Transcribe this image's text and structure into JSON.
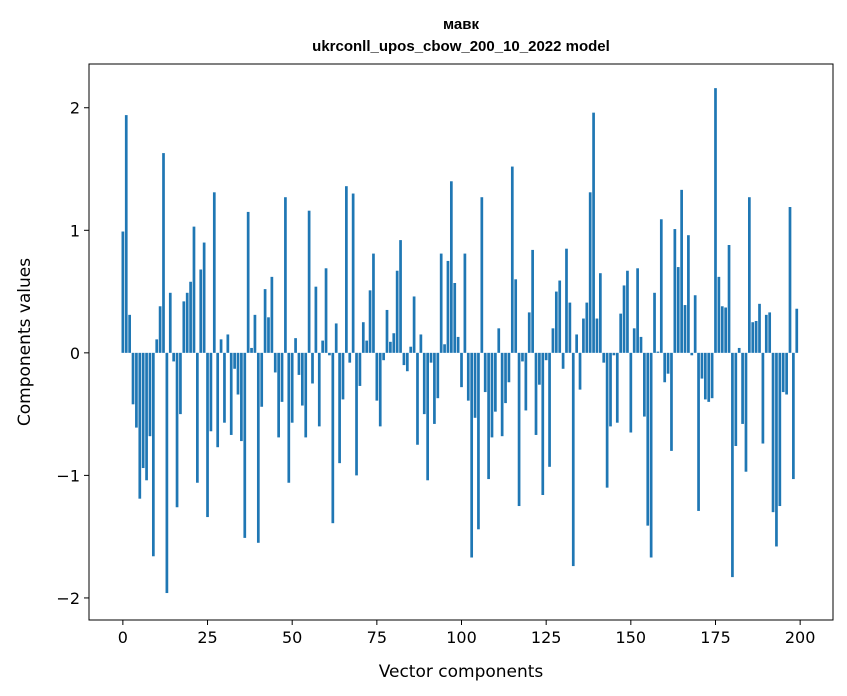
{
  "chart_data": {
    "type": "bar",
    "title_line1": "мавк",
    "title_line2": "ukrconll_upos_cbow_200_10_2022 model",
    "xlabel": "Vector components",
    "ylabel": "Components values",
    "xlim": [
      -10,
      209.7
    ],
    "ylim": [
      -2.18,
      2.357
    ],
    "xticks": [
      0,
      25,
      50,
      75,
      100,
      125,
      150,
      175,
      200
    ],
    "xtick_labels": [
      "0",
      "25",
      "50",
      "75",
      "100",
      "125",
      "150",
      "175",
      "200"
    ],
    "yticks": [
      -2,
      -1,
      0,
      1,
      2
    ],
    "ytick_labels": [
      "−2",
      "−1",
      "0",
      "1",
      "2"
    ],
    "grid": false,
    "bar_color": "#1f77b4",
    "values": [
      0.99,
      1.94,
      0.31,
      -0.42,
      -0.61,
      -1.19,
      -0.94,
      -1.04,
      -0.68,
      -1.66,
      0.11,
      0.38,
      1.63,
      -1.96,
      0.49,
      -0.07,
      -1.26,
      -0.5,
      0.42,
      0.49,
      0.58,
      1.03,
      -1.06,
      0.68,
      0.9,
      -1.34,
      -0.64,
      1.31,
      -0.77,
      0.11,
      -0.57,
      0.15,
      -0.67,
      -0.13,
      -0.34,
      -0.72,
      -1.51,
      1.15,
      0.04,
      0.31,
      -1.55,
      -0.44,
      0.52,
      0.29,
      0.62,
      -0.16,
      -0.69,
      -0.4,
      1.27,
      -1.06,
      -0.57,
      0.12,
      -0.18,
      -0.43,
      -0.69,
      1.16,
      -0.25,
      0.54,
      -0.6,
      0.1,
      0.69,
      -0.02,
      -1.39,
      0.24,
      -0.9,
      -0.38,
      1.36,
      -0.08,
      1.3,
      -1.0,
      -0.27,
      0.25,
      0.1,
      0.51,
      0.81,
      -0.39,
      -0.6,
      -0.06,
      0.35,
      0.09,
      0.16,
      0.67,
      0.92,
      -0.1,
      -0.15,
      0.05,
      0.46,
      -0.75,
      0.15,
      -0.5,
      -1.04,
      -0.08,
      -0.58,
      -0.37,
      0.81,
      0.07,
      0.75,
      1.4,
      0.57,
      0.13,
      -0.28,
      0.81,
      -0.39,
      -1.67,
      -0.53,
      -1.44,
      1.27,
      -0.32,
      -1.03,
      -0.69,
      -0.48,
      0.2,
      -0.68,
      -0.41,
      -0.24,
      1.52,
      0.6,
      -1.25,
      -0.07,
      -0.47,
      0.33,
      0.84,
      -0.67,
      -0.26,
      -1.16,
      -0.06,
      -0.93,
      0.2,
      0.5,
      0.59,
      -0.13,
      0.85,
      0.41,
      -1.74,
      0.15,
      -0.3,
      0.28,
      0.41,
      1.31,
      1.96,
      0.28,
      0.65,
      -0.08,
      -1.1,
      -0.6,
      -0.02,
      -0.57,
      0.32,
      0.55,
      0.67,
      -0.65,
      0.2,
      0.69,
      0.13,
      -0.52,
      -1.41,
      -1.67,
      0.49,
      0.01,
      1.09,
      -0.24,
      -0.17,
      -0.8,
      1.01,
      0.7,
      1.33,
      0.39,
      0.96,
      -0.02,
      0.47,
      -1.29,
      -0.21,
      -0.38,
      -0.4,
      -0.37,
      2.16,
      0.62,
      0.38,
      0.37,
      0.88,
      -1.83,
      -0.76,
      0.04,
      -0.58,
      -0.97,
      1.27,
      0.25,
      0.26,
      0.4,
      -0.74,
      0.31,
      0.33,
      -1.3,
      -1.58,
      -1.25,
      -0.32,
      -0.34,
      1.19,
      -1.03,
      0.36
    ]
  }
}
